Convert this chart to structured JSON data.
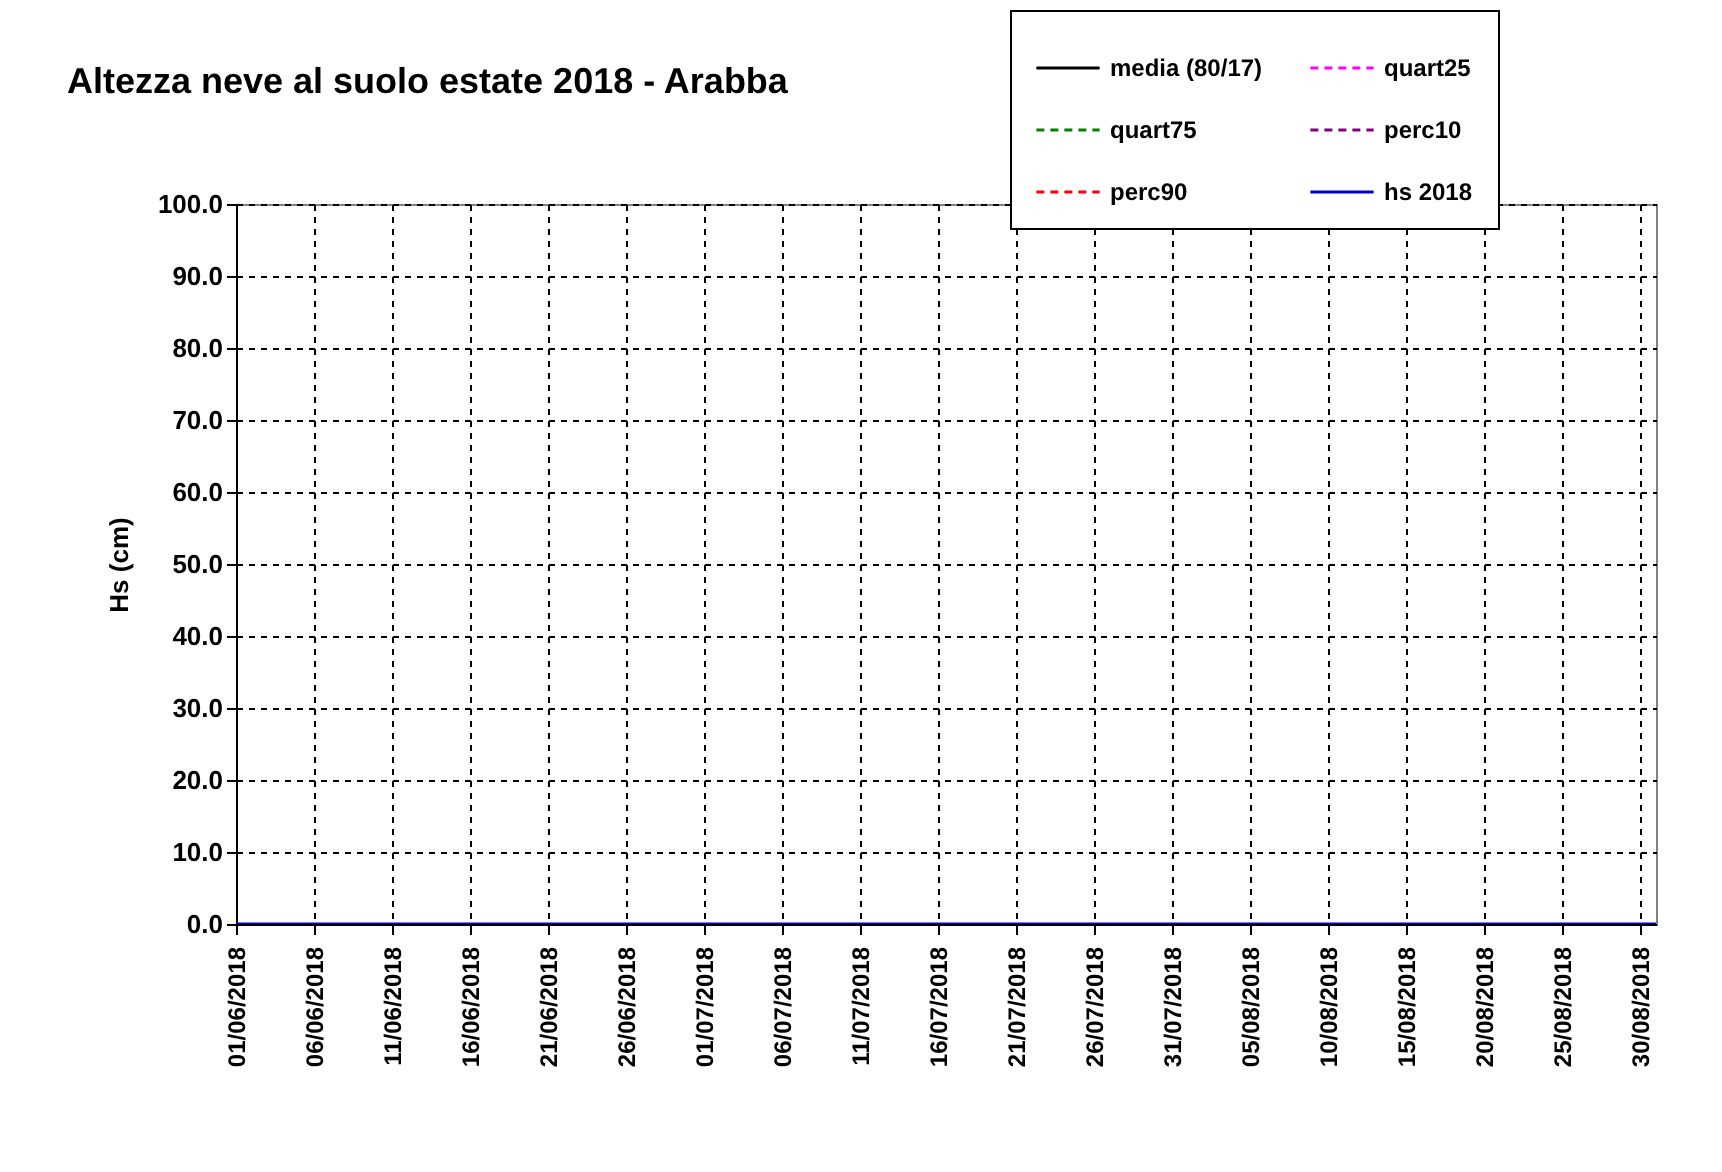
{
  "chart_data": {
    "type": "line",
    "title": "Altezza neve al suolo estate 2018 - Arabba",
    "ylabel": "Hs (cm)",
    "x": [
      "2018-06-01",
      "2018-08-31"
    ],
    "xlim": [
      "2018-06-01",
      "2018-08-31"
    ],
    "xticks": [
      {
        "value": "2018-06-01",
        "label": "01/06/2018"
      },
      {
        "value": "2018-06-06",
        "label": "06/06/2018"
      },
      {
        "value": "2018-06-11",
        "label": "11/06/2018"
      },
      {
        "value": "2018-06-16",
        "label": "16/06/2018"
      },
      {
        "value": "2018-06-21",
        "label": "21/06/2018"
      },
      {
        "value": "2018-06-26",
        "label": "26/06/2018"
      },
      {
        "value": "2018-07-01",
        "label": "01/07/2018"
      },
      {
        "value": "2018-07-06",
        "label": "06/07/2018"
      },
      {
        "value": "2018-07-11",
        "label": "11/07/2018"
      },
      {
        "value": "2018-07-16",
        "label": "16/07/2018"
      },
      {
        "value": "2018-07-21",
        "label": "21/07/2018"
      },
      {
        "value": "2018-07-26",
        "label": "26/07/2018"
      },
      {
        "value": "2018-07-31",
        "label": "31/07/2018"
      },
      {
        "value": "2018-08-05",
        "label": "05/08/2018"
      },
      {
        "value": "2018-08-10",
        "label": "10/08/2018"
      },
      {
        "value": "2018-08-15",
        "label": "15/08/2018"
      },
      {
        "value": "2018-08-20",
        "label": "20/08/2018"
      },
      {
        "value": "2018-08-25",
        "label": "25/08/2018"
      },
      {
        "value": "2018-08-30",
        "label": "30/08/2018"
      }
    ],
    "ylim": [
      0,
      100
    ],
    "yticks": [
      {
        "value": 0,
        "label": "0.0"
      },
      {
        "value": 10,
        "label": "10.0"
      },
      {
        "value": 20,
        "label": "20.0"
      },
      {
        "value": 30,
        "label": "30.0"
      },
      {
        "value": 40,
        "label": "40.0"
      },
      {
        "value": 50,
        "label": "50.0"
      },
      {
        "value": 60,
        "label": "60.0"
      },
      {
        "value": 70,
        "label": "70.0"
      },
      {
        "value": 80,
        "label": "80.0"
      },
      {
        "value": 90,
        "label": "90.0"
      },
      {
        "value": 100,
        "label": "100.0"
      }
    ],
    "grid": true,
    "legend": "top right",
    "series": [
      {
        "name": "media (80/17)",
        "color": "#000000",
        "line_style": "solid",
        "values": [
          null,
          null
        ]
      },
      {
        "name": "quart25",
        "color": "#ff00ff",
        "line_style": "dashed",
        "values": [
          null,
          null
        ]
      },
      {
        "name": "quart75",
        "color": "#008000",
        "line_style": "dashed",
        "values": [
          null,
          null
        ]
      },
      {
        "name": "perc10",
        "color": "#800080",
        "line_style": "dashed",
        "values": [
          null,
          null
        ]
      },
      {
        "name": "perc90",
        "color": "#ff0000",
        "line_style": "dashed",
        "values": [
          null,
          null
        ]
      },
      {
        "name": "hs 2018",
        "color": "#0000cc",
        "line_style": "solid",
        "values": [
          0,
          0
        ]
      }
    ]
  }
}
